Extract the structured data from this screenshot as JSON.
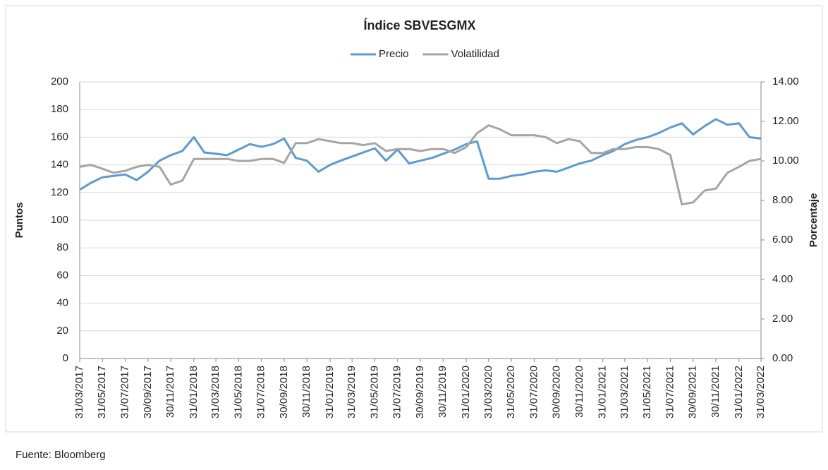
{
  "chart_data": {
    "type": "line",
    "title": "Índice SBVESGMX",
    "ylabel": "Puntos",
    "y2label": "Porcentaje",
    "source": "Fuente: Bloomberg",
    "x": [
      "31/03/2017",
      "30/04/2017",
      "31/05/2017",
      "30/06/2017",
      "31/07/2017",
      "31/08/2017",
      "30/09/2017",
      "31/10/2017",
      "30/11/2017",
      "31/12/2017",
      "31/01/2018",
      "28/02/2018",
      "31/03/2018",
      "30/04/2018",
      "31/05/2018",
      "30/06/2018",
      "31/07/2018",
      "31/08/2018",
      "30/09/2018",
      "31/10/2018",
      "30/11/2018",
      "31/12/2018",
      "31/01/2019",
      "28/02/2019",
      "31/03/2019",
      "30/04/2019",
      "31/05/2019",
      "30/06/2019",
      "31/07/2019",
      "31/08/2019",
      "30/09/2019",
      "31/10/2019",
      "30/11/2019",
      "31/12/2019",
      "31/01/2020",
      "29/02/2020",
      "31/03/2020",
      "30/04/2020",
      "31/05/2020",
      "30/06/2020",
      "31/07/2020",
      "31/08/2020",
      "30/09/2020",
      "31/10/2020",
      "30/11/2020",
      "31/12/2020",
      "31/01/2021",
      "28/02/2021",
      "31/03/2021",
      "30/04/2021",
      "31/05/2021",
      "30/06/2021",
      "31/07/2021",
      "31/08/2021",
      "30/09/2021",
      "31/10/2021",
      "30/11/2021",
      "31/12/2021",
      "31/01/2022",
      "28/02/2022",
      "31/03/2022"
    ],
    "series": [
      {
        "name": "Precio",
        "color": "#5b9bd5",
        "values": [
          122,
          127,
          131,
          132,
          133,
          129,
          135,
          143,
          147,
          150,
          160,
          149,
          148,
          147,
          151,
          155,
          153,
          155,
          159,
          145,
          143,
          135,
          140,
          143,
          146,
          149,
          152,
          143,
          151,
          141,
          143,
          145,
          148,
          151,
          155,
          157,
          130,
          130,
          132,
          133,
          135,
          136,
          135,
          138,
          141,
          143,
          147,
          150,
          155,
          158,
          160,
          163,
          167,
          170,
          162,
          168,
          173,
          169,
          170,
          160,
          159
        ]
      },
      {
        "name": "Volatilidad",
        "color": "#a5a5a5",
        "axis": "y2",
        "values": [
          9.7,
          9.8,
          9.6,
          9.4,
          9.5,
          9.7,
          9.8,
          9.7,
          8.8,
          9.0,
          10.1,
          10.1,
          10.1,
          10.1,
          10.0,
          10.0,
          10.1,
          10.1,
          9.9,
          10.9,
          10.9,
          11.1,
          11.0,
          10.9,
          10.9,
          10.8,
          10.9,
          10.5,
          10.6,
          10.6,
          10.5,
          10.6,
          10.6,
          10.4,
          10.7,
          11.4,
          11.8,
          11.6,
          11.3,
          11.3,
          11.3,
          11.2,
          10.9,
          11.1,
          11.0,
          10.4,
          10.4,
          10.6,
          10.6,
          10.7,
          10.7,
          10.6,
          10.3,
          7.8,
          7.9,
          8.5,
          8.6,
          9.4,
          9.7,
          10.0,
          10.1
        ]
      }
    ],
    "xlim": [
      "31/03/2017",
      "31/03/2022"
    ],
    "xticks": [
      "31/03/2017",
      "31/05/2017",
      "31/07/2017",
      "30/09/2017",
      "30/11/2017",
      "31/01/2018",
      "31/03/2018",
      "31/05/2018",
      "31/07/2018",
      "30/09/2018",
      "30/11/2018",
      "31/01/2019",
      "31/03/2019",
      "31/05/2019",
      "31/07/2019",
      "30/09/2019",
      "30/11/2019",
      "31/01/2020",
      "31/03/2020",
      "31/05/2020",
      "31/07/2020",
      "30/09/2020",
      "30/11/2020",
      "31/01/2021",
      "31/03/2021",
      "31/05/2021",
      "31/07/2021",
      "30/09/2021",
      "30/11/2021",
      "31/01/2022",
      "31/03/2022"
    ],
    "ylim": [
      0,
      200
    ],
    "yticks": [
      0,
      20,
      40,
      60,
      80,
      100,
      120,
      140,
      160,
      180,
      200
    ],
    "y2lim": [
      0,
      14
    ],
    "y2ticks": [
      {
        "value": 0,
        "label": "0.00"
      },
      {
        "value": 2,
        "label": "2.00"
      },
      {
        "value": 4,
        "label": "4.00"
      },
      {
        "value": 6,
        "label": "6.00"
      },
      {
        "value": 8,
        "label": "8.00"
      },
      {
        "value": 10,
        "label": "10.00"
      },
      {
        "value": 12,
        "label": "12.00"
      },
      {
        "value": 14,
        "label": "14.00"
      }
    ],
    "grid": true,
    "legend": "top"
  }
}
